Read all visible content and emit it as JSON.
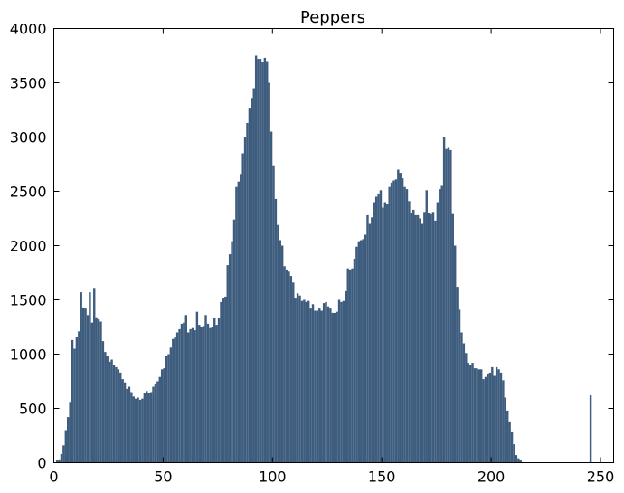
{
  "chart_data": {
    "type": "bar",
    "title": "Peppers",
    "xlabel": "",
    "ylabel": "",
    "xlim": [
      0,
      256
    ],
    "ylim": [
      0,
      4000
    ],
    "grid": false,
    "bar_color": "#3e5d7e",
    "x_ticks": [
      0,
      50,
      100,
      150,
      200,
      250
    ],
    "y_ticks": [
      0,
      500,
      1000,
      1500,
      2000,
      2500,
      3000,
      3500,
      4000
    ],
    "bin_start": 0,
    "bin_width": 1,
    "values": [
      0,
      20,
      30,
      80,
      160,
      300,
      420,
      560,
      1130,
      1050,
      1160,
      1210,
      1570,
      1430,
      1420,
      1360,
      1570,
      1290,
      1610,
      1340,
      1320,
      1300,
      1120,
      1020,
      980,
      930,
      950,
      900,
      880,
      860,
      830,
      770,
      740,
      680,
      700,
      650,
      610,
      590,
      600,
      580,
      590,
      640,
      660,
      640,
      650,
      700,
      730,
      750,
      790,
      860,
      870,
      980,
      1000,
      1060,
      1140,
      1160,
      1200,
      1230,
      1280,
      1290,
      1360,
      1200,
      1230,
      1240,
      1220,
      1390,
      1270,
      1250,
      1260,
      1360,
      1280,
      1240,
      1250,
      1330,
      1270,
      1330,
      1480,
      1520,
      1530,
      1820,
      1920,
      2040,
      2240,
      2540,
      2590,
      2660,
      2850,
      3000,
      3130,
      3270,
      3360,
      3450,
      3750,
      3720,
      3720,
      3690,
      3730,
      3700,
      3500,
      3050,
      2740,
      2430,
      2190,
      2050,
      2000,
      1810,
      1780,
      1760,
      1720,
      1660,
      1520,
      1560,
      1540,
      1490,
      1500,
      1480,
      1490,
      1420,
      1460,
      1400,
      1400,
      1420,
      1400,
      1470,
      1480,
      1440,
      1420,
      1380,
      1380,
      1390,
      1500,
      1480,
      1490,
      1580,
      1790,
      1780,
      1790,
      1880,
      1990,
      2040,
      2050,
      2060,
      2100,
      2280,
      2200,
      2260,
      2400,
      2450,
      2480,
      2510,
      2350,
      2400,
      2380,
      2540,
      2580,
      2600,
      2610,
      2700,
      2670,
      2620,
      2540,
      2520,
      2410,
      2300,
      2330,
      2280,
      2280,
      2250,
      2200,
      2310,
      2510,
      2300,
      2290,
      2310,
      2230,
      2400,
      2520,
      2550,
      3000,
      2890,
      2900,
      2880,
      2290,
      2000,
      1620,
      1410,
      1200,
      1100,
      1010,
      920,
      900,
      920,
      870,
      870,
      860,
      860,
      770,
      790,
      820,
      830,
      880,
      800,
      880,
      860,
      830,
      760,
      600,
      480,
      380,
      280,
      170,
      70,
      40,
      20,
      5,
      0,
      0,
      0,
      0,
      0,
      0,
      0,
      0,
      0,
      0,
      0,
      0,
      0,
      0,
      0,
      0,
      0,
      0,
      0,
      0,
      0,
      0,
      0,
      0,
      0,
      0,
      0,
      0,
      0,
      0,
      620,
      0
    ]
  }
}
